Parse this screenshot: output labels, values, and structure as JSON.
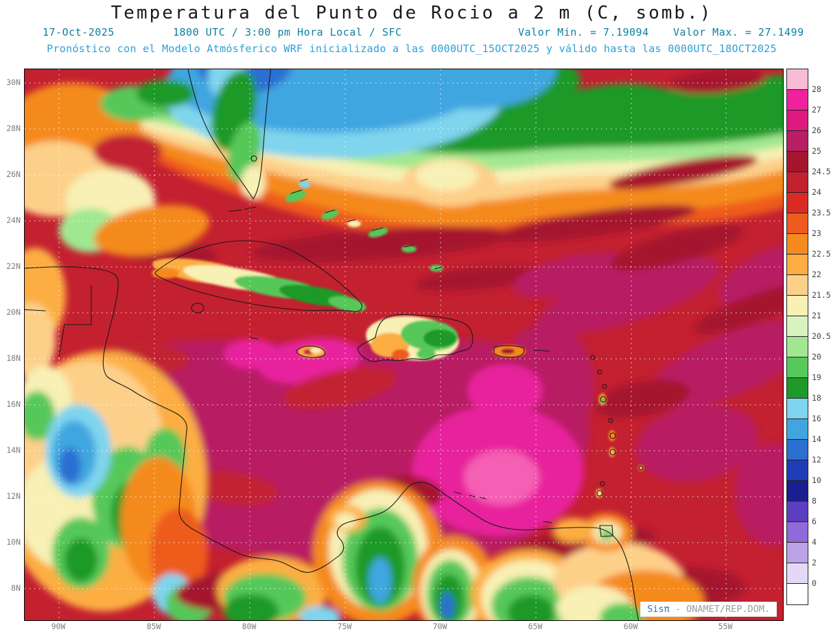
{
  "title": "Temperatura del Punto de Rocio a 2 m (C, somb.)",
  "header": {
    "date": "17-Oct-2025",
    "time_line": "1800 UTC / 3:00 pm Hora Local / SFC",
    "valor_min": "Valor Min. = 7.19094",
    "valor_max": "Valor Max. = 27.1499",
    "model_line": "Pronóstico con el Modelo Atmósferico WRF inicializado a las 0000UTC_15OCT2025 y válido hasta las 0000UTC_18OCT2025"
  },
  "map": {
    "lat_labels": [
      "30N",
      "28N",
      "26N",
      "24N",
      "22N",
      "20N",
      "18N",
      "16N",
      "14N",
      "12N",
      "10N",
      "8N"
    ],
    "lon_labels": [
      "90W",
      "85W",
      "80W",
      "75W",
      "70W",
      "65W",
      "60W",
      "55W"
    ]
  },
  "colorbar": {
    "unit": "C",
    "labels": [
      "28",
      "27",
      "26",
      "25",
      "24.5",
      "24",
      "23.5",
      "23",
      "22.5",
      "22",
      "21.5",
      "21",
      "20.5",
      "20",
      "19",
      "18",
      "16",
      "14",
      "12",
      "10",
      "8",
      "6",
      "4",
      "2",
      "0"
    ],
    "colors": [
      "#f8bcd6",
      "#f0219c",
      "#de1a80",
      "#b81e62",
      "#a5152e",
      "#c32030",
      "#da2b23",
      "#ee5b1e",
      "#f58a1f",
      "#fcae42",
      "#fdd08a",
      "#f8f0b4",
      "#d9f3c0",
      "#a0e890",
      "#57c85a",
      "#1f9928",
      "#7fd4ee",
      "#41a6e0",
      "#2b6fd0",
      "#1f3db8",
      "#1a1e8f",
      "#5b3fc0",
      "#8f6ad8",
      "#bda2e8",
      "#e3d9f6",
      "#ffffff"
    ]
  },
  "credit": {
    "brand": "Sisπ",
    "text": "- ONAMET/REP.DOM."
  }
}
